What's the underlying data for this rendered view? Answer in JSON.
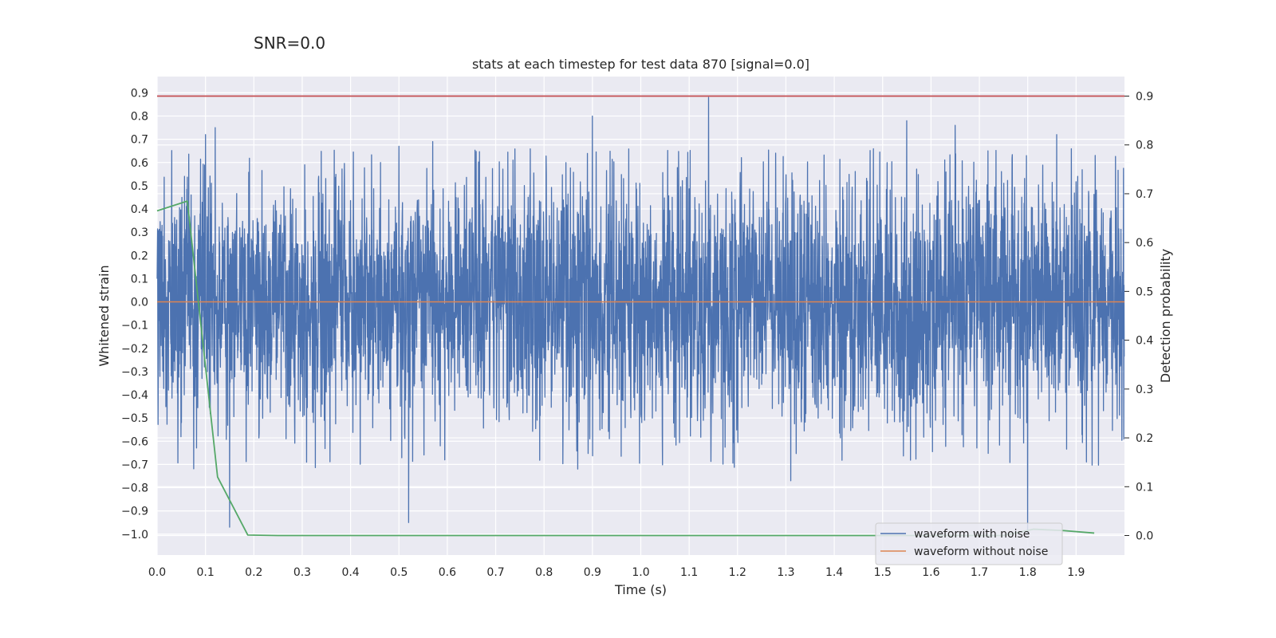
{
  "figure": {
    "suptitle": "SNR=0.0"
  },
  "chart_data": {
    "type": "line",
    "title": "stats at each timestep for test data 870 [signal=0.0]",
    "xlabel": "Time (s)",
    "ylabel": "Whitened strain",
    "y2label": "Detection probability",
    "xlim": [
      0.0,
      2.0
    ],
    "ylim": [
      -1.09,
      0.97
    ],
    "y2lim": [
      -0.04,
      0.94
    ],
    "x_ticks": [
      "0.0",
      "0.1",
      "0.2",
      "0.3",
      "0.4",
      "0.5",
      "0.6",
      "0.7",
      "0.8",
      "0.9",
      "1.0",
      "1.1",
      "1.2",
      "1.3",
      "1.4",
      "1.5",
      "1.6",
      "1.7",
      "1.8",
      "1.9"
    ],
    "y_ticks": [
      "−1.0",
      "−0.9",
      "−0.8",
      "−0.7",
      "−0.6",
      "−0.5",
      "−0.4",
      "−0.3",
      "−0.2",
      "−0.1",
      "0.0",
      "0.1",
      "0.2",
      "0.3",
      "0.4",
      "0.5",
      "0.6",
      "0.7",
      "0.8",
      "0.9"
    ],
    "y2_ticks": [
      "0.0",
      "0.1",
      "0.2",
      "0.3",
      "0.4",
      "0.5",
      "0.6",
      "0.7",
      "0.8",
      "0.9"
    ],
    "grid": true,
    "legend_position": "lower-right",
    "series": [
      {
        "name": "waveform with noise",
        "axis": "left",
        "color": "#4c72b0",
        "sample_rate_hz": 2048,
        "noise_std": 0.26,
        "peaks": [
          {
            "x": 0.1,
            "y": 0.72
          },
          {
            "x": 0.12,
            "y": 0.75
          },
          {
            "x": 0.15,
            "y": -0.97
          },
          {
            "x": 0.5,
            "y": 0.67
          },
          {
            "x": 0.52,
            "y": -0.95
          },
          {
            "x": 0.57,
            "y": 0.69
          },
          {
            "x": 0.9,
            "y": 0.8
          },
          {
            "x": 1.14,
            "y": 0.88
          },
          {
            "x": 1.31,
            "y": -0.77
          },
          {
            "x": 1.55,
            "y": 0.78
          },
          {
            "x": 1.65,
            "y": 0.76
          },
          {
            "x": 1.8,
            "y": -1.0
          },
          {
            "x": 1.86,
            "y": 0.72
          }
        ]
      },
      {
        "name": "waveform without noise",
        "axis": "left",
        "color": "#dd8452",
        "x": [
          0.0,
          2.0
        ],
        "y": [
          0.0,
          0.0
        ]
      },
      {
        "name": "",
        "axis": "right",
        "color": "#55a868",
        "x": [
          0.0,
          0.0625,
          0.125,
          0.1875,
          0.25,
          0.3125,
          0.375,
          0.4375,
          0.5,
          0.5625,
          0.625,
          0.6875,
          0.75,
          0.8125,
          0.875,
          0.9375,
          1.0,
          1.0625,
          1.125,
          1.1875,
          1.25,
          1.3125,
          1.375,
          1.4375,
          1.5,
          1.5625,
          1.625,
          1.6875,
          1.75,
          1.8125,
          1.875,
          1.9375
        ],
        "y": [
          0.665,
          0.685,
          0.12,
          0.001,
          0.0,
          0.0,
          0.0,
          0.0,
          0.0,
          0.0,
          0.0,
          0.0,
          0.0,
          0.0,
          0.0,
          0.0,
          0.0,
          0.0,
          0.0,
          0.0,
          0.0,
          0.0,
          0.0,
          0.0,
          0.0,
          0.0,
          0.0,
          0.0,
          0.0,
          0.013,
          0.01,
          0.005
        ]
      },
      {
        "name": "",
        "axis": "right",
        "color": "#c44e52",
        "x": [
          0.0,
          2.0
        ],
        "y": [
          0.9,
          0.9
        ]
      }
    ]
  }
}
